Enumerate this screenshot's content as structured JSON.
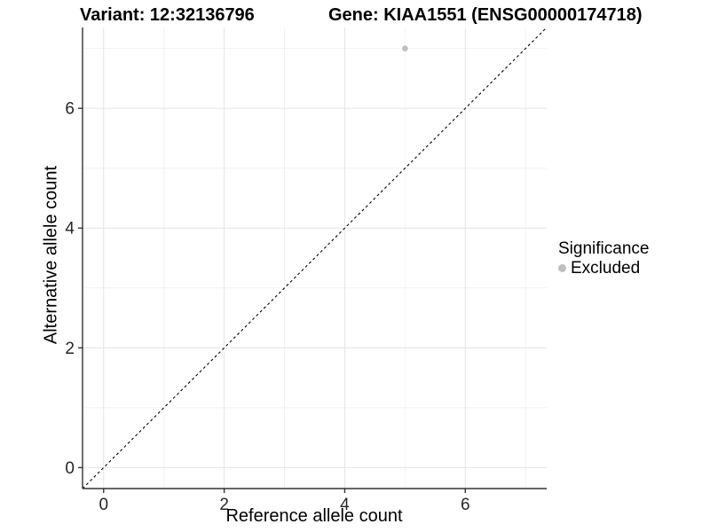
{
  "titles": {
    "variant": "Variant: 12:32136796",
    "gene": "Gene: KIAA1551 (ENSG00000174718)"
  },
  "chart_data": {
    "type": "scatter",
    "xlabel": "Reference allele count",
    "ylabel": "Alternative allele count",
    "xlim": [
      -0.35,
      7.35
    ],
    "ylim": [
      -0.35,
      7.35
    ],
    "xticks": [
      0,
      2,
      4,
      6
    ],
    "yticks": [
      0,
      2,
      4,
      6
    ],
    "x_minor": [
      1,
      3,
      5,
      7
    ],
    "y_minor": [
      1,
      3,
      5,
      7
    ],
    "grid": "major+minor",
    "reference_line": {
      "type": "identity y=x",
      "style": "dashed",
      "color": "#000000"
    },
    "series": [
      {
        "name": "Excluded",
        "color": "#bebebe",
        "points": [
          {
            "x": 5,
            "y": 7
          }
        ]
      }
    ],
    "legend": {
      "position": "right",
      "title": "Significance",
      "entries": [
        {
          "label": "Excluded",
          "color": "#bebebe"
        }
      ]
    },
    "colors": {
      "axis": "#333333",
      "tick_text": "#262626",
      "grid_major": "#e4e4e4",
      "grid_minor": "#f2f2f2"
    }
  }
}
